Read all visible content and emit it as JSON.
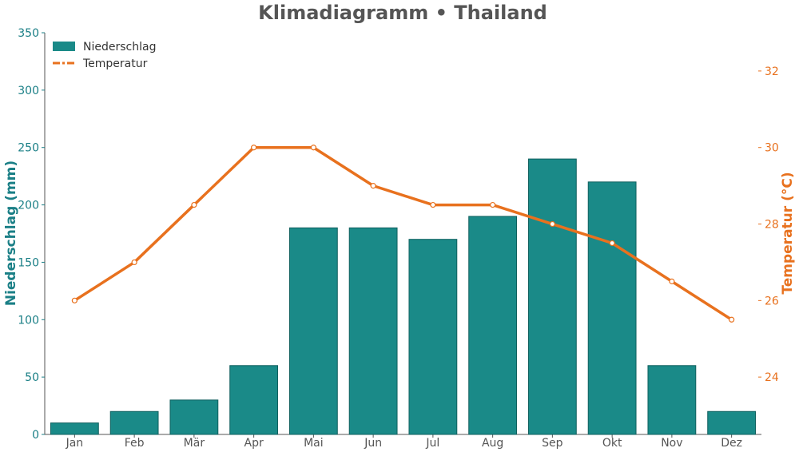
{
  "chart_data": {
    "type": "bar+line",
    "title": "Klimadiagramm • Thailand",
    "categories": [
      "Jan",
      "Feb",
      "Mär",
      "Apr",
      "Mai",
      "Jun",
      "Jul",
      "Aug",
      "Sep",
      "Okt",
      "Nov",
      "Dez"
    ],
    "series": [
      {
        "name": "Niederschlag",
        "type": "bar",
        "axis": "left",
        "values": [
          10,
          20,
          30,
          60,
          180,
          180,
          170,
          190,
          240,
          220,
          60,
          20
        ],
        "color": "#1a8a88"
      },
      {
        "name": "Temperatur",
        "type": "line",
        "axis": "right",
        "values": [
          26,
          27,
          28.5,
          30,
          30,
          29,
          28.5,
          28.5,
          28,
          27.5,
          26.5,
          25.5
        ],
        "color": "#e8711e"
      }
    ],
    "y_left": {
      "label": "Niederschlag (mm)",
      "ylim": [
        0,
        350
      ],
      "ticks": [
        0,
        50,
        100,
        150,
        200,
        250,
        300,
        350
      ],
      "color": "#1a7f86"
    },
    "y_right": {
      "label": "Temperatur (°C)",
      "ylim": [
        22.5,
        33.0
      ],
      "ticks": [
        24,
        26,
        28,
        30,
        32
      ],
      "color": "#e8711e"
    },
    "grid": false,
    "legend_position": "top-left"
  }
}
